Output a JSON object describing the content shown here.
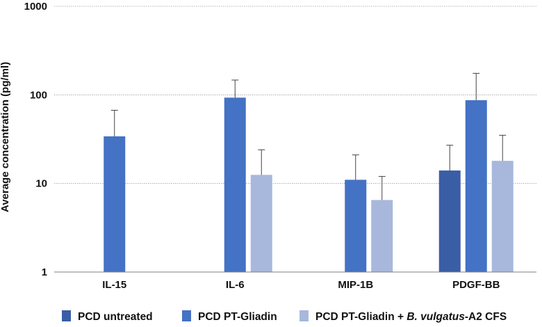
{
  "chart_data": {
    "type": "bar",
    "title": "",
    "xlabel": "",
    "ylabel": "Average concentration (pg/ml)",
    "yscale": "log",
    "ylim": [
      1,
      1000
    ],
    "yticks": [
      "1",
      "10",
      "100",
      "1000"
    ],
    "grid": true,
    "legend_position": "bottom",
    "categories": [
      "IL-15",
      "IL-6",
      "MIP-1B",
      "PDGF-BB"
    ],
    "series": [
      {
        "name": "PCD untreated",
        "color": "#3a5ea5",
        "values": [
          null,
          null,
          null,
          14
        ],
        "errors": [
          null,
          null,
          null,
          27
        ]
      },
      {
        "name": "PCD PT-Gliadin",
        "color": "#4472c4",
        "values": [
          34,
          93,
          11,
          87
        ],
        "errors": [
          67,
          147,
          21,
          175
        ]
      },
      {
        "name_parts": [
          "PCD PT-Gliadin + ",
          "B. vulgatus",
          "-A2 CFS"
        ],
        "color": "#a8b8dc",
        "values": [
          null,
          12.5,
          6.5,
          18
        ],
        "errors": [
          null,
          24,
          12,
          35
        ]
      }
    ]
  }
}
